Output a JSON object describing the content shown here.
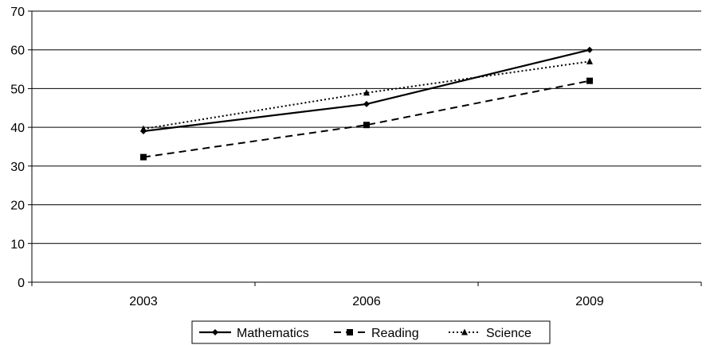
{
  "chart_data": {
    "type": "line",
    "title": "",
    "xlabel": "",
    "ylabel": "",
    "categories": [
      "2003",
      "2006",
      "2009"
    ],
    "ylim": [
      0,
      70
    ],
    "yticks": [
      "0",
      "10",
      "20",
      "30",
      "40",
      "50",
      "60",
      "70"
    ],
    "grid": "horizontal",
    "legend_position": "bottom-center",
    "series": [
      {
        "name": "Mathematics",
        "values": [
          39,
          46,
          60
        ],
        "line_style": "solid",
        "marker": "diamond",
        "color": "#000000"
      },
      {
        "name": "Reading",
        "values": [
          32.3,
          40.6,
          52
        ],
        "line_style": "dashed",
        "marker": "square",
        "color": "#000000"
      },
      {
        "name": "Science",
        "values": [
          39.6,
          48.9,
          57
        ],
        "line_style": "dotted",
        "marker": "triangle",
        "color": "#000000"
      }
    ]
  }
}
